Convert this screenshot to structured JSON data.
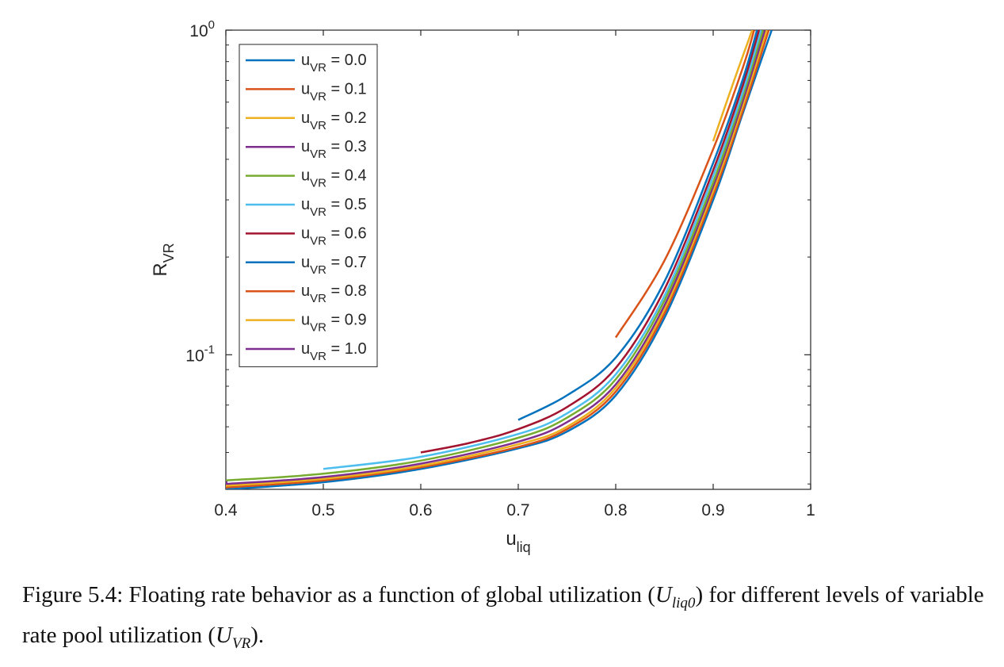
{
  "chart_data": {
    "type": "line",
    "xlabel": "u",
    "xlabel_sub": "liq",
    "ylabel": "R",
    "ylabel_sub": "VR",
    "xlim": [
      0.4,
      1.0
    ],
    "ylim": [
      0.0385,
      1.0
    ],
    "yscale": "log",
    "xticks": [
      0.4,
      0.5,
      0.6,
      0.7,
      0.8,
      0.9,
      1.0
    ],
    "xtick_labels": [
      "0.4",
      "0.5",
      "0.6",
      "0.7",
      "0.8",
      "0.9",
      "1"
    ],
    "yticks": [
      0.1,
      1.0
    ],
    "ytick_labels": [
      {
        "base": "10",
        "exp": "-1"
      },
      {
        "base": "10",
        "exp": "0"
      }
    ],
    "grid": false,
    "legend_position": "top-left",
    "series": [
      {
        "name": "u_VR = 0.0",
        "legend_main": "u",
        "legend_sub": "VR",
        "legend_value": " = 0.0",
        "color": "#0072BD",
        "x": [
          0.4,
          0.5,
          0.6,
          0.7,
          0.75,
          0.8,
          0.85,
          0.9,
          0.93,
          0.96
        ],
        "y": [
          0.0385,
          0.0405,
          0.0445,
          0.0515,
          0.058,
          0.075,
          0.13,
          0.3,
          0.55,
          1.0
        ]
      },
      {
        "name": "u_VR = 0.1",
        "legend_main": "u",
        "legend_sub": "VR",
        "legend_value": " = 0.1",
        "color": "#D95319",
        "x": [
          0.4,
          0.5,
          0.6,
          0.7,
          0.75,
          0.8,
          0.85,
          0.9,
          0.93,
          0.957
        ],
        "y": [
          0.039,
          0.041,
          0.045,
          0.052,
          0.059,
          0.077,
          0.134,
          0.31,
          0.56,
          1.0
        ]
      },
      {
        "name": "u_VR = 0.2",
        "legend_main": "u",
        "legend_sub": "VR",
        "legend_value": " = 0.2",
        "color": "#EDB120",
        "x": [
          0.4,
          0.5,
          0.6,
          0.7,
          0.75,
          0.8,
          0.85,
          0.9,
          0.93,
          0.955
        ],
        "y": [
          0.0395,
          0.0415,
          0.0455,
          0.053,
          0.06,
          0.079,
          0.138,
          0.32,
          0.58,
          1.0
        ]
      },
      {
        "name": "u_VR = 0.3",
        "legend_main": "u",
        "legend_sub": "VR",
        "legend_value": " = 0.3",
        "color": "#7E2F8E",
        "x": [
          0.4,
          0.5,
          0.6,
          0.7,
          0.75,
          0.8,
          0.85,
          0.9,
          0.93,
          0.953
        ],
        "y": [
          0.04,
          0.042,
          0.0462,
          0.054,
          0.062,
          0.081,
          0.142,
          0.33,
          0.6,
          1.0
        ]
      },
      {
        "name": "u_VR = 0.4",
        "legend_main": "u",
        "legend_sub": "VR",
        "legend_value": " = 0.4",
        "color": "#77AC30",
        "x": [
          0.4,
          0.5,
          0.6,
          0.7,
          0.75,
          0.8,
          0.85,
          0.9,
          0.93,
          0.951
        ],
        "y": [
          0.041,
          0.043,
          0.0472,
          0.0555,
          0.064,
          0.084,
          0.147,
          0.34,
          0.62,
          1.0
        ]
      },
      {
        "name": "u_VR = 0.5",
        "legend_main": "u",
        "legend_sub": "VR",
        "legend_value": " = 0.5",
        "color": "#4DBEEE",
        "x": [
          0.5,
          0.6,
          0.7,
          0.75,
          0.8,
          0.85,
          0.9,
          0.93,
          0.949
        ],
        "y": [
          0.0445,
          0.0485,
          0.057,
          0.066,
          0.087,
          0.152,
          0.355,
          0.64,
          1.0
        ]
      },
      {
        "name": "u_VR = 0.6",
        "legend_main": "u",
        "legend_sub": "VR",
        "legend_value": " = 0.6",
        "color": "#A2142F",
        "x": [
          0.6,
          0.65,
          0.7,
          0.75,
          0.8,
          0.85,
          0.9,
          0.93,
          0.947
        ],
        "y": [
          0.05,
          0.0535,
          0.059,
          0.069,
          0.091,
          0.159,
          0.37,
          0.67,
          1.0
        ]
      },
      {
        "name": "u_VR = 0.7",
        "legend_main": "u",
        "legend_sub": "VR",
        "legend_value": " = 0.7",
        "color": "#0072BD",
        "x": [
          0.7,
          0.75,
          0.8,
          0.85,
          0.9,
          0.93,
          0.945
        ],
        "y": [
          0.063,
          0.075,
          0.098,
          0.168,
          0.39,
          0.7,
          1.0
        ]
      },
      {
        "name": "u_VR = 0.8",
        "legend_main": "u",
        "legend_sub": "VR",
        "legend_value": " = 0.8",
        "color": "#D95319",
        "x": [
          0.8,
          0.85,
          0.9,
          0.93,
          0.942
        ],
        "y": [
          0.113,
          0.195,
          0.43,
          0.76,
          1.0
        ]
      },
      {
        "name": "u_VR = 0.9",
        "legend_main": "u",
        "legend_sub": "VR",
        "legend_value": " = 0.9",
        "color": "#EDB120",
        "x": [
          0.9,
          0.92,
          0.94
        ],
        "y": [
          0.455,
          0.68,
          1.0
        ]
      },
      {
        "name": "u_VR = 1.0",
        "legend_main": "u",
        "legend_sub": "VR",
        "legend_value": " = 1.0",
        "color": "#7E2F8E",
        "x": [
          0.4
        ],
        "y": [
          0.0405
        ]
      }
    ]
  },
  "caption": {
    "prefix": "Figure 5.4: Floating rate behavior as a function of global utilization (",
    "sym1_main": "U",
    "sym1_sub": "liq0",
    "middle": ") for different levels of variable rate pool utilization (",
    "sym2_main": "U",
    "sym2_sub": "VR",
    "suffix": ")."
  }
}
